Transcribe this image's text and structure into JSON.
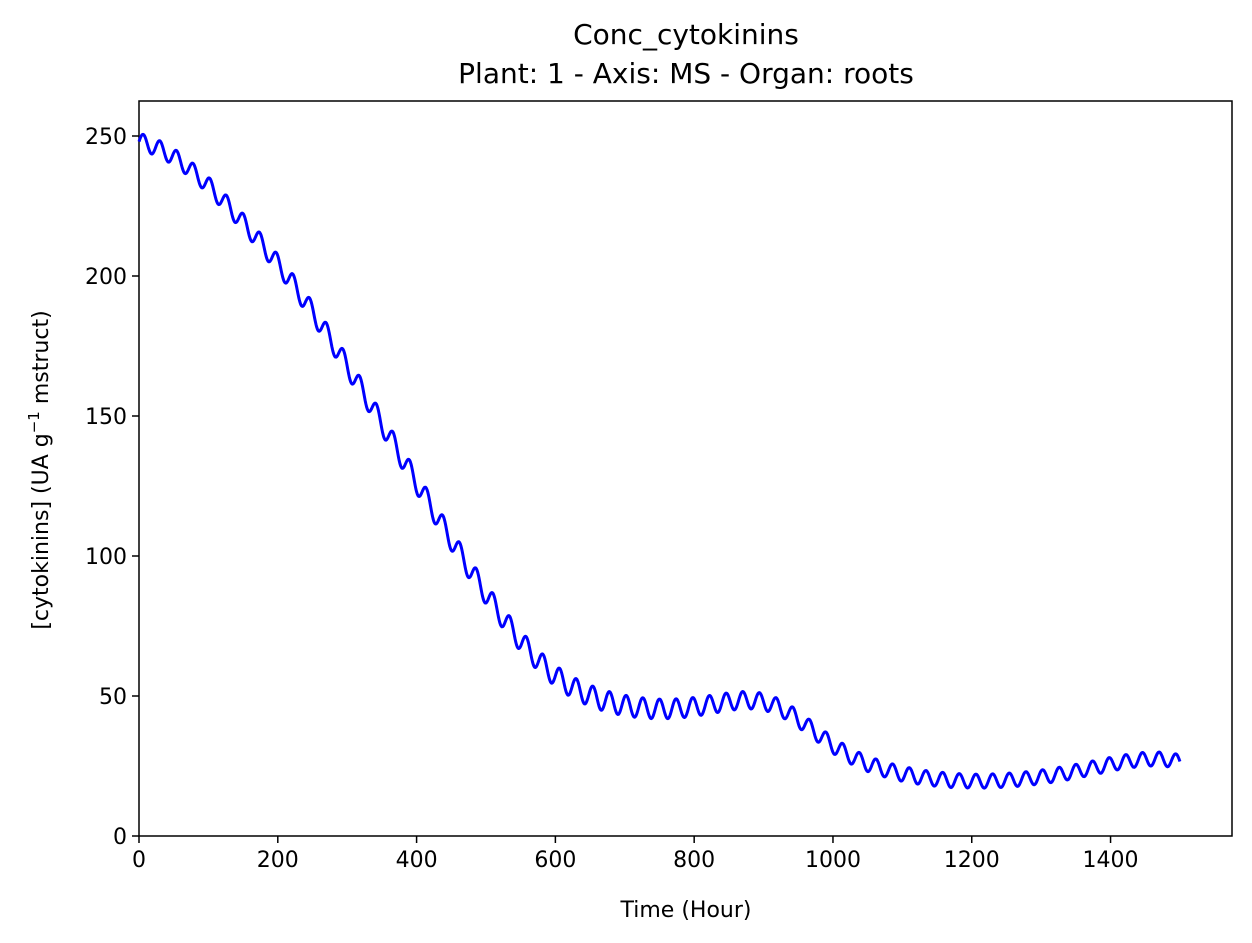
{
  "chart_data": {
    "type": "line",
    "title": "Conc_cytokinins",
    "subtitle": "Plant: 1 - Axis: MS - Organ: roots",
    "xlabel": "Time (Hour)",
    "ylabel_main": "[cytokinins] (UA g",
    "ylabel_sup": "−1",
    "ylabel_tail": " mstruct)",
    "xlim": [
      0,
      1575
    ],
    "ylim": [
      0,
      262.5
    ],
    "x_ticks": [
      0,
      200,
      400,
      600,
      800,
      1000,
      1200,
      1400
    ],
    "y_ticks": [
      0,
      50,
      100,
      150,
      200,
      250
    ],
    "grid": false,
    "legend": "none",
    "series": [
      {
        "color": "#0000ff",
        "oscillation_period_hours": 24,
        "x": [
          0,
          10,
          20,
          30,
          40,
          50,
          60,
          70,
          80,
          90,
          100,
          110,
          120,
          130,
          140,
          150,
          160,
          170,
          180,
          190,
          200,
          210,
          220,
          230,
          240,
          250,
          260,
          270,
          280,
          290,
          300,
          310,
          320,
          330,
          340,
          350,
          360,
          370,
          380,
          390,
          400,
          410,
          420,
          430,
          440,
          450,
          460,
          470,
          480,
          490,
          500,
          510,
          520,
          530,
          540,
          550,
          560,
          570,
          580,
          590,
          600,
          610,
          620,
          630,
          640,
          650,
          660,
          670,
          680,
          690,
          700,
          710,
          720,
          730,
          740,
          750,
          760,
          770,
          780,
          790,
          800,
          810,
          820,
          830,
          840,
          850,
          860,
          870,
          880,
          890,
          900,
          910,
          920,
          930,
          940,
          950,
          960,
          970,
          980,
          990,
          1000,
          1010,
          1020,
          1030,
          1040,
          1050,
          1060,
          1070,
          1080,
          1090,
          1100,
          1110,
          1120,
          1130,
          1140,
          1150,
          1160,
          1170,
          1180,
          1190,
          1200,
          1210,
          1220,
          1230,
          1240,
          1250,
          1260,
          1270,
          1280,
          1290,
          1300,
          1310,
          1320,
          1330,
          1340,
          1350,
          1360,
          1370,
          1380,
          1390,
          1400,
          1410,
          1420,
          1430,
          1440,
          1450,
          1460,
          1470,
          1480,
          1490,
          1500
        ],
        "trend": [
          248,
          247.3,
          246.4,
          245.3,
          244,
          242.5,
          240.8,
          238.9,
          236.8,
          234.6,
          232.3,
          229.8,
          227.2,
          224.6,
          221.9,
          219.1,
          216.3,
          213.4,
          210.5,
          207.4,
          204.3,
          201.1,
          197.8,
          194.3,
          190.8,
          187.1,
          183.4,
          179.6,
          175.7,
          171.8,
          167.8,
          163.8,
          159.7,
          155.6,
          151.4,
          147.2,
          143,
          138.8,
          134.6,
          130.4,
          126.2,
          122.1,
          118,
          113.9,
          109.8,
          105.8,
          101.8,
          97.9,
          94,
          90.2,
          86.5,
          82.9,
          79.4,
          76,
          72.8,
          69.7,
          66.8,
          64.1,
          61.6,
          59.3,
          57.2,
          55.4,
          53.8,
          52.4,
          51.2,
          50.1,
          49.2,
          48.4,
          47.7,
          47.1,
          46.6,
          46.2,
          45.9,
          45.7,
          45.5,
          45.4,
          45.4,
          45.5,
          45.6,
          45.8,
          46.1,
          46.4,
          46.8,
          47.2,
          47.6,
          48,
          48.3,
          48.5,
          48.5,
          48.3,
          47.9,
          47.2,
          46.2,
          44.9,
          43.4,
          41.7,
          39.9,
          38,
          36.1,
          34.2,
          32.4,
          30.8,
          29.3,
          28,
          26.8,
          25.8,
          24.9,
          24.1,
          23.4,
          22.8,
          22.2,
          21.7,
          21.3,
          20.9,
          20.6,
          20.3,
          20.1,
          19.9,
          19.8,
          19.7,
          19.6,
          19.6,
          19.6,
          19.7,
          19.8,
          19.9,
          20.1,
          20.3,
          20.5,
          20.8,
          21.1,
          21.4,
          21.8,
          22.2,
          22.6,
          23.1,
          23.6,
          24.1,
          24.6,
          25.1,
          25.6,
          26.1,
          26.5,
          26.9,
          27.2,
          27.4,
          27.5,
          27.5,
          27.3,
          27.0,
          26.6
        ],
        "amplitude": [
          3,
          3,
          3,
          3,
          3,
          3,
          3,
          3,
          3,
          3,
          3.1,
          3.1,
          3.1,
          3.2,
          3.2,
          3.2,
          3.3,
          3.3,
          3.3,
          3.4,
          3.4,
          3.4,
          3.5,
          3.5,
          3.5,
          3.5,
          3.6,
          3.6,
          3.6,
          3.6,
          3.7,
          3.7,
          3.7,
          3.7,
          3.7,
          3.8,
          3.8,
          3.8,
          3.8,
          3.8,
          3.8,
          3.8,
          3.8,
          3.8,
          3.8,
          3.8,
          3.8,
          3.8,
          3.8,
          3.8,
          3.8,
          3.8,
          3.8,
          3.8,
          3.8,
          3.8,
          3.8,
          3.8,
          3.8,
          3.8,
          3.8,
          3.8,
          3.8,
          3.8,
          3.8,
          3.8,
          3.8,
          3.8,
          3.7,
          3.7,
          3.7,
          3.7,
          3.6,
          3.6,
          3.6,
          3.5,
          3.5,
          3.5,
          3.4,
          3.4,
          3.4,
          3.3,
          3.3,
          3.3,
          3.2,
          3.2,
          3.2,
          3.1,
          3.1,
          3.1,
          3,
          3,
          3,
          3,
          3,
          3,
          2.9,
          2.9,
          2.9,
          2.9,
          2.9,
          2.9,
          2.8,
          2.8,
          2.8,
          2.8,
          2.8,
          2.7,
          2.7,
          2.7,
          2.7,
          2.7,
          2.7,
          2.6,
          2.6,
          2.6,
          2.6,
          2.6,
          2.5,
          2.5,
          2.5,
          2.5,
          2.5,
          2.5,
          2.5,
          2.5,
          2.5,
          2.5,
          2.5,
          2.5,
          2.5,
          2.5,
          2.5,
          2.5,
          2.5,
          2.5,
          2.5,
          2.5,
          2.5,
          2.5,
          2.5,
          2.5,
          2.5,
          2.5,
          2.5,
          2.5,
          2.5,
          2.5,
          2.5,
          2.5,
          2.5
        ]
      }
    ]
  }
}
